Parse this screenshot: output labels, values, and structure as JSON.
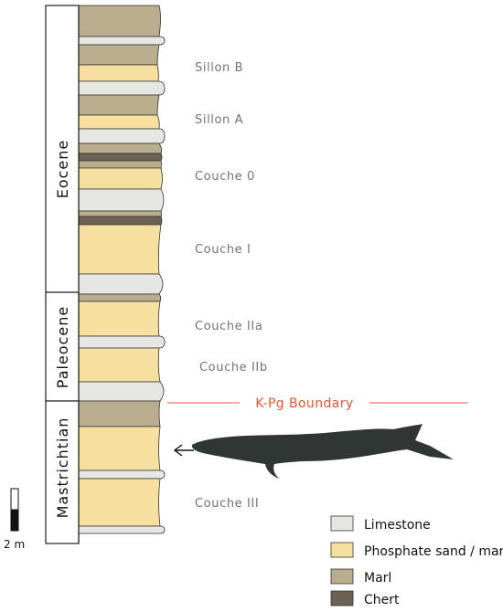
{
  "colors": {
    "limestone": "#e6e7e2",
    "phosphate": "#f6df9f",
    "marl": "#b9ad8e",
    "chert": "#6b6253",
    "boundary": "#e8562e",
    "fish": "#2f3634",
    "unit_text": "#7b7170"
  },
  "epochs": [
    {
      "key": "eocene",
      "label": "Eocene"
    },
    {
      "key": "paleocene",
      "label": "Paleocene"
    },
    {
      "key": "mastrichtian",
      "label": "Mastrichtian"
    }
  ],
  "lithology_units": [
    {
      "label": "Sillon B"
    },
    {
      "label": "Sillon A"
    },
    {
      "label": "Couche 0"
    },
    {
      "label": "Couche I"
    },
    {
      "label": "Couche IIa"
    },
    {
      "label": "Couche IIb"
    },
    {
      "label": "Couche III"
    }
  ],
  "boundary": {
    "label": "K-Pg Boundary"
  },
  "scale_bar": {
    "label": "2 m"
  },
  "legend": [
    {
      "key": "limestone",
      "label": "Limestone"
    },
    {
      "key": "phosphate",
      "label": "Phosphate sand / marl"
    },
    {
      "key": "marl",
      "label": "Marl"
    },
    {
      "key": "chert",
      "label": "Chert"
    }
  ],
  "fossil": {
    "icon": "fish-silhouette-icon",
    "pointer": "arrow-left-icon"
  }
}
